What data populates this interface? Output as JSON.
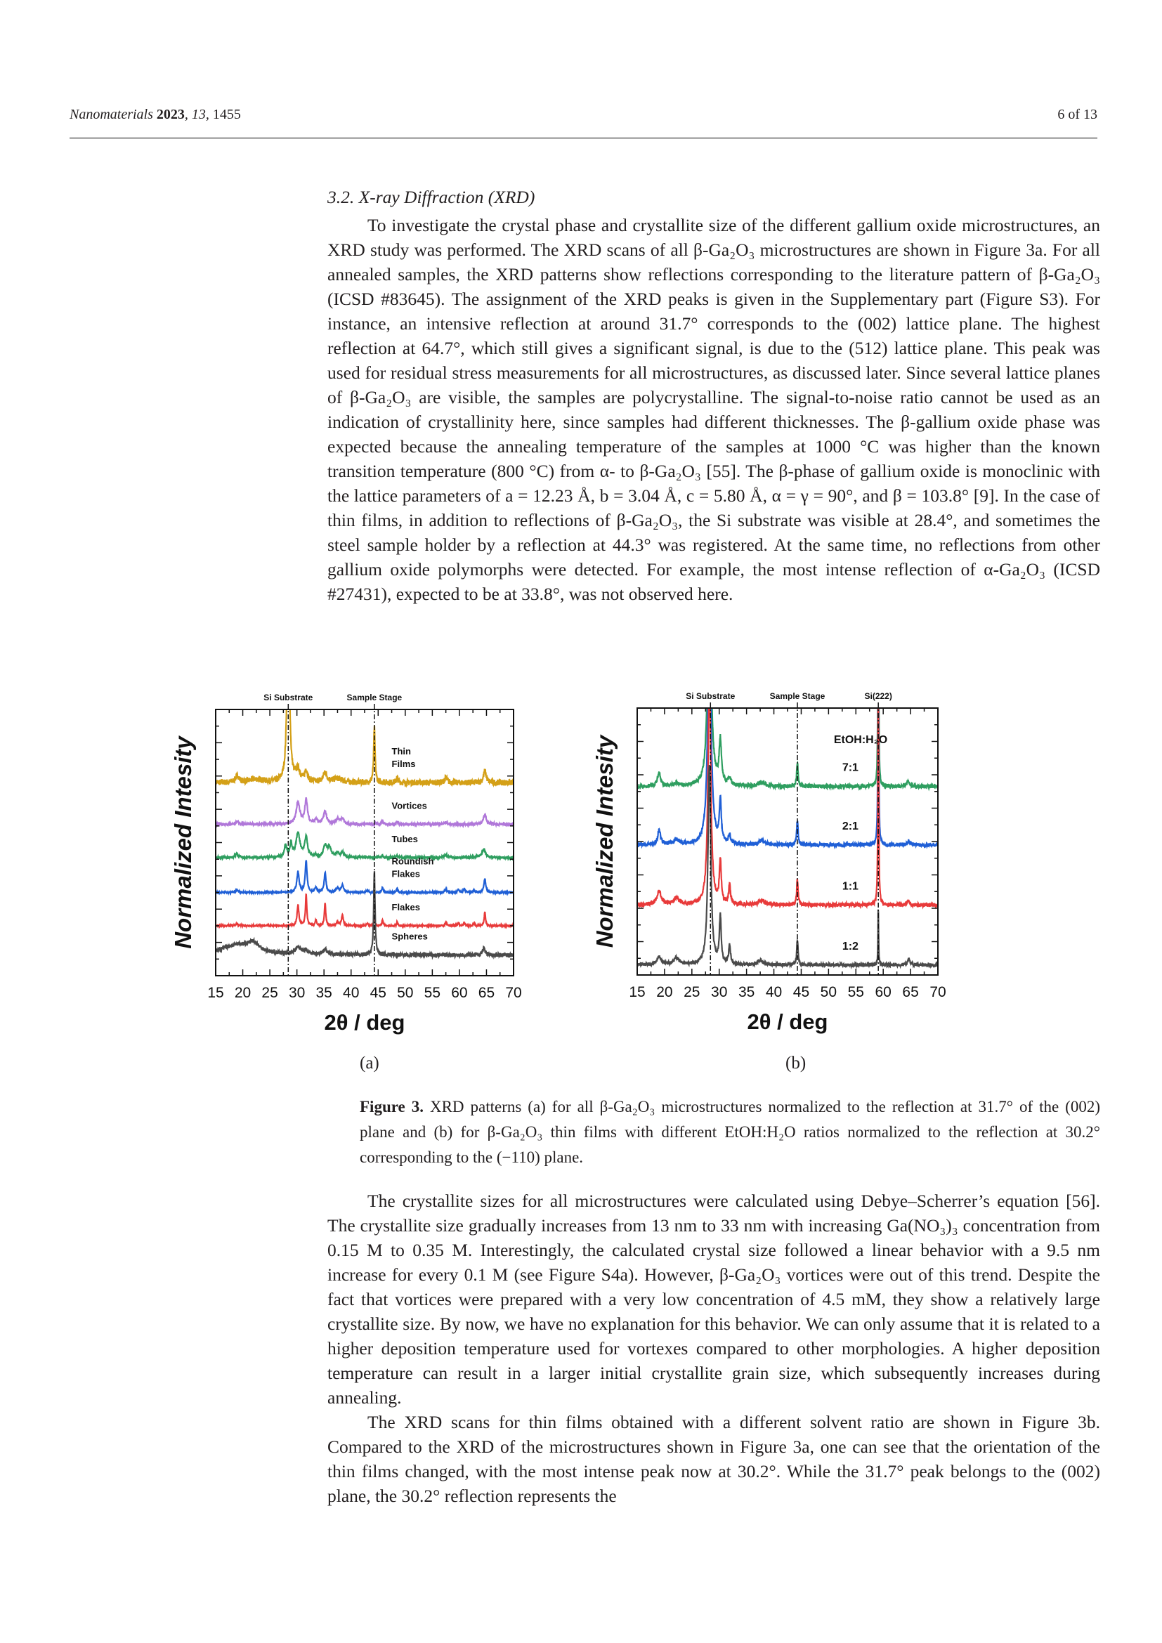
{
  "header": {
    "journal": "Nanomaterials",
    "year": "2023",
    "volume": "13",
    "article": "1455",
    "page": "6 of 13"
  },
  "section_title": "3.2. X-ray Diffraction (XRD)",
  "paragraph1": "To investigate the crystal phase and crystallite size of the different gallium oxide microstructures, an XRD study was performed. The XRD scans of all β-Ga₂O₃ microstructures are shown in Figure 3a. For all annealed samples, the XRD patterns show reflections corresponding to the literature pattern of β-Ga₂O₃ (ICSD #83645). The assignment of the XRD peaks is given in the Supplementary part (Figure S3). For instance, an intensive reflection at around 31.7° corresponds to the (002) lattice plane. The highest reflection at 64.7°, which still gives a significant signal, is due to the (512) lattice plane. This peak was used for residual stress measurements for all microstructures, as discussed later. Since several lattice planes of β-Ga₂O₃ are visible, the samples are polycrystalline. The signal-to-noise ratio cannot be used as an indication of crystallinity here, since samples had different thicknesses. The β-gallium oxide phase was expected because the annealing temperature of the samples at 1000 °C was higher than the known transition temperature (800 °C) from α- to β-Ga₂O₃ [55]. The β-phase of gallium oxide is monoclinic with the lattice parameters of a = 12.23 Å, b = 3.04 Å, c = 5.80 Å, α = γ = 90°, and β = 103.8° [9]. In the case of thin films, in addition to reflections of β-Ga₂O₃, the Si substrate was visible at 28.4°, and sometimes the steel sample holder by a reflection at 44.3° was registered. At the same time, no reflections from other gallium oxide polymorphs were detected. For example, the most intense reflection of α-Ga₂O₃ (ICSD #27431), expected to be at 33.8°, was not observed here.",
  "subfig_a": "(a)",
  "subfig_b": "(b)",
  "caption_label": "Figure 3.",
  "caption_text": " XRD patterns (a) for all β-Ga₂O₃ microstructures normalized to the reflection at 31.7° of the (002) plane and (b) for β-Ga₂O₃ thin films with different EtOH:H₂O ratios normalized to the reflection at 30.2° corresponding to the (−110) plane.",
  "paragraph2": "The crystallite sizes for all microstructures were calculated using Debye–Scherrer’s equation [56]. The crystallite size gradually increases from 13 nm to 33 nm with increasing Ga(NO₃)₃ concentration from 0.15 M to 0.35 M. Interestingly, the calculated crystal size followed a linear behavior with a 9.5 nm increase for every 0.1 M (see Figure S4a). However, β-Ga₂O₃ vortices were out of this trend. Despite the fact that vortices were prepared with a very low concentration of 4.5 mM, they show a relatively large crystallite size. By now, we have no explanation for this behavior. We can only assume that it is related to a higher deposition temperature used for vortexes compared to other morphologies. A higher deposition temperature can result in a larger initial crystallite grain size, which subsequently increases during annealing.",
  "paragraph3": "The XRD scans for thin films obtained with a different solvent ratio are shown in Figure 3b. Compared to the XRD of the microstructures shown in Figure 3a, one can see that the orientation of the thin films changed, with the most intense peak now at 30.2°. While the 31.7° peak belongs to the (002) plane, the 30.2° reflection represents the",
  "chart_data": [
    {
      "type": "line",
      "id": "a",
      "xlabel": "2θ / deg",
      "ylabel": "Normalized Intesity",
      "xlim": [
        15,
        70
      ],
      "ylim": [
        0,
        8
      ],
      "xticks": [
        15,
        20,
        25,
        30,
        35,
        40,
        45,
        50,
        55,
        60,
        65,
        70
      ],
      "reference_lines": [
        {
          "x": 28.4,
          "label": "Si Substrate"
        },
        {
          "x": 44.3,
          "label": "Sample Stage"
        }
      ],
      "series": [
        {
          "name": "Thin Films",
          "label_lines": [
            "Thin",
            "Films"
          ],
          "color": "#d4a017",
          "offset": 5.8,
          "noise": 0.09,
          "peaks": [
            [
              19,
              0.2,
              0.4
            ],
            [
              22.5,
              0.1,
              1.5
            ],
            [
              28.4,
              6,
              0.25
            ],
            [
              30.2,
              0.35,
              0.5
            ],
            [
              31.7,
              0.35,
              0.3
            ],
            [
              35.2,
              0.3,
              0.4
            ],
            [
              37.5,
              0.12,
              1
            ],
            [
              44.3,
              1.65,
              0.15
            ],
            [
              48.5,
              0.15,
              0.2
            ],
            [
              57.5,
              0.15,
              0.3
            ],
            [
              64.7,
              0.35,
              0.3
            ]
          ]
        },
        {
          "name": "Vortices",
          "label_lines": [
            "Vortices"
          ],
          "color": "#b077d9",
          "offset": 4.55,
          "noise": 0.04,
          "peaks": [
            [
              19,
              0.06,
              0.5
            ],
            [
              30.2,
              0.65,
              0.4
            ],
            [
              31.7,
              0.72,
              0.3
            ],
            [
              33.5,
              0.12,
              0.3
            ],
            [
              35.2,
              0.38,
              0.35
            ],
            [
              37.5,
              0.15,
              0.4
            ],
            [
              38.4,
              0.15,
              0.4
            ],
            [
              45.8,
              0.1,
              0.2
            ],
            [
              48.5,
              0.07,
              0.2
            ],
            [
              57.5,
              0.06,
              0.3
            ],
            [
              64.7,
              0.3,
              0.3
            ]
          ]
        },
        {
          "name": "Tubes",
          "label_lines": [
            "Tubes"
          ],
          "color": "#2e9e5f",
          "offset": 3.55,
          "noise": 0.035,
          "peaks": [
            [
              18.9,
              0.12,
              0.3
            ],
            [
              27.9,
              0.35,
              0.3
            ],
            [
              28.9,
              0.4,
              0.2
            ],
            [
              30.2,
              0.72,
              0.45
            ],
            [
              31.7,
              0.6,
              0.3
            ],
            [
              33.5,
              0.06,
              0.3
            ],
            [
              35.2,
              0.35,
              0.35
            ],
            [
              36,
              0.3,
              0.35
            ],
            [
              37.5,
              0.15,
              0.3
            ],
            [
              38.4,
              0.15,
              0.3
            ],
            [
              45.8,
              0.06,
              0.2
            ],
            [
              48.5,
              0.06,
              0.2
            ],
            [
              57.5,
              0.08,
              0.3
            ],
            [
              64.5,
              0.25,
              0.4
            ]
          ]
        },
        {
          "name": "Roundish Flakes",
          "label_lines": [
            "Roundish",
            "Flakes"
          ],
          "color": "#1f5fd6",
          "offset": 2.5,
          "noise": 0.02,
          "peaks": [
            [
              18.9,
              0.07,
              0.3
            ],
            [
              30.2,
              0.62,
              0.25
            ],
            [
              31.7,
              0.95,
              0.2
            ],
            [
              33.5,
              0.15,
              0.2
            ],
            [
              35.2,
              0.6,
              0.2
            ],
            [
              37.5,
              0.13,
              0.3
            ],
            [
              38.4,
              0.22,
              0.25
            ],
            [
              43,
              0.07,
              0.2
            ],
            [
              45.8,
              0.15,
              0.15
            ],
            [
              48.5,
              0.12,
              0.15
            ],
            [
              57.5,
              0.1,
              0.2
            ],
            [
              59.8,
              0.08,
              0.2
            ],
            [
              60.9,
              0.1,
              0.2
            ],
            [
              62.7,
              0.07,
              0.15
            ],
            [
              64.7,
              0.42,
              0.2
            ]
          ]
        },
        {
          "name": "Flakes",
          "label_lines": [
            "Flakes"
          ],
          "color": "#e83a3a",
          "offset": 1.5,
          "noise": 0.02,
          "peaks": [
            [
              18.9,
              0.06,
              0.3
            ],
            [
              30.2,
              0.62,
              0.2
            ],
            [
              31.7,
              0.95,
              0.15
            ],
            [
              33.5,
              0.17,
              0.15
            ],
            [
              35.2,
              0.68,
              0.15
            ],
            [
              37.5,
              0.1,
              0.3
            ],
            [
              38.4,
              0.32,
              0.2
            ],
            [
              43,
              0.08,
              0.15
            ],
            [
              44.3,
              0.22,
              0.12
            ],
            [
              45.8,
              0.2,
              0.12
            ],
            [
              48.5,
              0.13,
              0.12
            ],
            [
              57.5,
              0.12,
              0.15
            ],
            [
              59.8,
              0.08,
              0.15
            ],
            [
              60.9,
              0.1,
              0.15
            ],
            [
              62.7,
              0.08,
              0.12
            ],
            [
              64.7,
              0.42,
              0.15
            ]
          ]
        },
        {
          "name": "Spheres",
          "label_lines": [
            "Spheres"
          ],
          "color": "#4a4a4a",
          "offset": 0.62,
          "noise": 0.06,
          "peaks": [
            [
              19,
              0.3,
              3.5
            ],
            [
              22,
              0.25,
              1.2
            ],
            [
              30.2,
              0.2,
              0.6
            ],
            [
              31.7,
              0.12,
              0.5
            ],
            [
              35.2,
              0.15,
              0.5
            ],
            [
              44.3,
              2.5,
              0.15
            ],
            [
              64.5,
              0.2,
              0.3
            ]
          ]
        }
      ]
    },
    {
      "type": "line",
      "id": "b",
      "xlabel": "2θ / deg",
      "ylabel": "Normalized Intesity",
      "xlim": [
        15,
        70
      ],
      "ylim": [
        0,
        8
      ],
      "xticks": [
        15,
        20,
        25,
        30,
        35,
        40,
        45,
        50,
        55,
        60,
        65,
        70
      ],
      "legend_title": "EtOH:H₂O",
      "reference_lines": [
        {
          "x": 28.4,
          "label": "Si Substrate"
        },
        {
          "x": 44.3,
          "label": "Sample Stage"
        },
        {
          "x": 59.1,
          "label": "Si(222)"
        }
      ],
      "series": [
        {
          "name": "7:1",
          "label_lines": [
            "7:1"
          ],
          "color": "#2e9e5f",
          "offset": 5.65,
          "noise": 0.06,
          "peaks": [
            [
              19,
              0.4,
              0.35
            ],
            [
              22.2,
              0.1,
              0.4
            ],
            [
              28.2,
              7,
              0.35
            ],
            [
              30.2,
              1.3,
              0.25
            ],
            [
              31.9,
              0.2,
              0.3
            ],
            [
              37.8,
              0.12,
              0.6
            ],
            [
              44.3,
              0.75,
              0.15
            ],
            [
              59.1,
              9,
              0.07
            ],
            [
              64.5,
              0.15,
              0.3
            ]
          ]
        },
        {
          "name": "2:1",
          "label_lines": [
            "2:1"
          ],
          "color": "#1f5fd6",
          "offset": 3.9,
          "noise": 0.06,
          "peaks": [
            [
              19,
              0.45,
              0.3
            ],
            [
              22.2,
              0.15,
              0.6
            ],
            [
              28.2,
              7,
              0.35
            ],
            [
              30.2,
              1.3,
              0.2
            ],
            [
              31.9,
              0.25,
              0.25
            ],
            [
              37.8,
              0.12,
              0.6
            ],
            [
              44.3,
              0.75,
              0.15
            ],
            [
              59.1,
              9,
              0.07
            ],
            [
              64.7,
              0.12,
              0.3
            ]
          ]
        },
        {
          "name": "1:1",
          "label_lines": [
            "1:1"
          ],
          "color": "#e83a3a",
          "offset": 2.1,
          "noise": 0.06,
          "peaks": [
            [
              19,
              0.4,
              0.5
            ],
            [
              22.2,
              0.2,
              0.6
            ],
            [
              28.2,
              7,
              0.3
            ],
            [
              30.2,
              1.3,
              0.2
            ],
            [
              31.9,
              0.55,
              0.2
            ],
            [
              37.8,
              0.12,
              0.6
            ],
            [
              44.3,
              0.75,
              0.15
            ],
            [
              59.1,
              9,
              0.07
            ],
            [
              64.5,
              0.12,
              0.3
            ]
          ]
        },
        {
          "name": "1:2",
          "label_lines": [
            "1:2"
          ],
          "color": "#4a4a4a",
          "offset": 0.3,
          "noise": 0.05,
          "peaks": [
            [
              19,
              0.25,
              0.5
            ],
            [
              22.2,
              0.2,
              0.6
            ],
            [
              28.2,
              6,
              0.3
            ],
            [
              30.2,
              1.4,
              0.2
            ],
            [
              31.9,
              0.55,
              0.2
            ],
            [
              37.5,
              0.12,
              0.6
            ],
            [
              44.3,
              0.75,
              0.15
            ],
            [
              59.1,
              1.8,
              0.06
            ],
            [
              64.7,
              0.17,
              0.3
            ]
          ]
        }
      ]
    }
  ]
}
